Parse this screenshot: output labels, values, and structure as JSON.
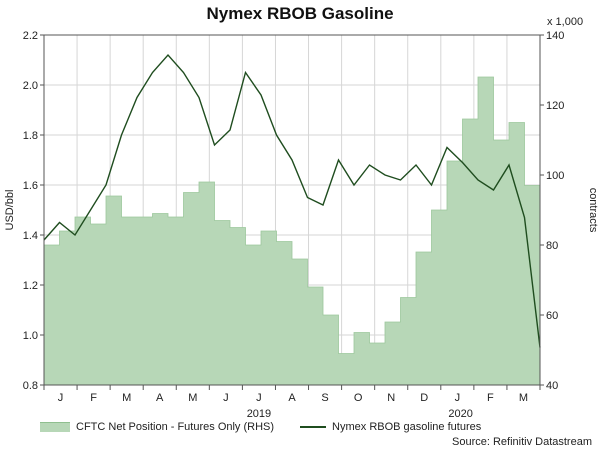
{
  "chart_data": {
    "type": "line",
    "title": "Nymex RBOB Gasoline",
    "ylabel": "USD/bbl",
    "y2label": "contracts",
    "y2_scale_note": "x 1,000",
    "ylim": [
      0.8,
      2.2
    ],
    "y2lim": [
      40,
      140
    ],
    "yticks": [
      "0.8",
      "1.0",
      "1.2",
      "1.4",
      "1.6",
      "1.8",
      "2.0",
      "2.2"
    ],
    "y2ticks": [
      "40",
      "60",
      "80",
      "100",
      "120",
      "140"
    ],
    "month_labels": [
      "J",
      "F",
      "M",
      "A",
      "M",
      "J",
      "J",
      "A",
      "S",
      "O",
      "N",
      "D",
      "J",
      "F",
      "M"
    ],
    "year_labels": [
      "2019",
      "2020"
    ],
    "grid": true,
    "legend_position": "bottom",
    "source": "Source: Refinitiv Datastream",
    "series": [
      {
        "name": "CFTC Net Position - Futures Only (RHS)",
        "type": "area",
        "axis": "right",
        "color": "#b7d7b7",
        "x": [
          0,
          2,
          4,
          6,
          8,
          10,
          12,
          14,
          16,
          18,
          20,
          22,
          24,
          26,
          28,
          30,
          32,
          34,
          36,
          38,
          40,
          42,
          44,
          46,
          48,
          50,
          52,
          54,
          56,
          58,
          60,
          62,
          64
        ],
        "values": [
          80,
          84,
          88,
          86,
          94,
          88,
          88,
          89,
          88,
          95,
          98,
          87,
          85,
          80,
          84,
          81,
          76,
          68,
          60,
          49,
          55,
          52,
          58,
          65,
          78,
          90,
          104,
          116,
          128,
          110,
          115,
          97,
          88
        ]
      },
      {
        "name": "Nymex RBOB gasoline futures",
        "type": "line",
        "axis": "left",
        "color": "#1f4d1f",
        "x": [
          0,
          2,
          4,
          6,
          8,
          10,
          12,
          14,
          16,
          18,
          20,
          22,
          24,
          26,
          28,
          30,
          32,
          34,
          36,
          38,
          40,
          42,
          44,
          46,
          48,
          50,
          52,
          54,
          56,
          58,
          60,
          62,
          64
        ],
        "values": [
          1.38,
          1.45,
          1.4,
          1.5,
          1.6,
          1.8,
          1.95,
          2.05,
          2.12,
          2.05,
          1.95,
          1.76,
          1.82,
          2.05,
          1.96,
          1.8,
          1.7,
          1.55,
          1.52,
          1.7,
          1.6,
          1.68,
          1.64,
          1.62,
          1.68,
          1.6,
          1.75,
          1.69,
          1.62,
          1.58,
          1.68,
          1.47,
          0.95
        ]
      }
    ]
  }
}
